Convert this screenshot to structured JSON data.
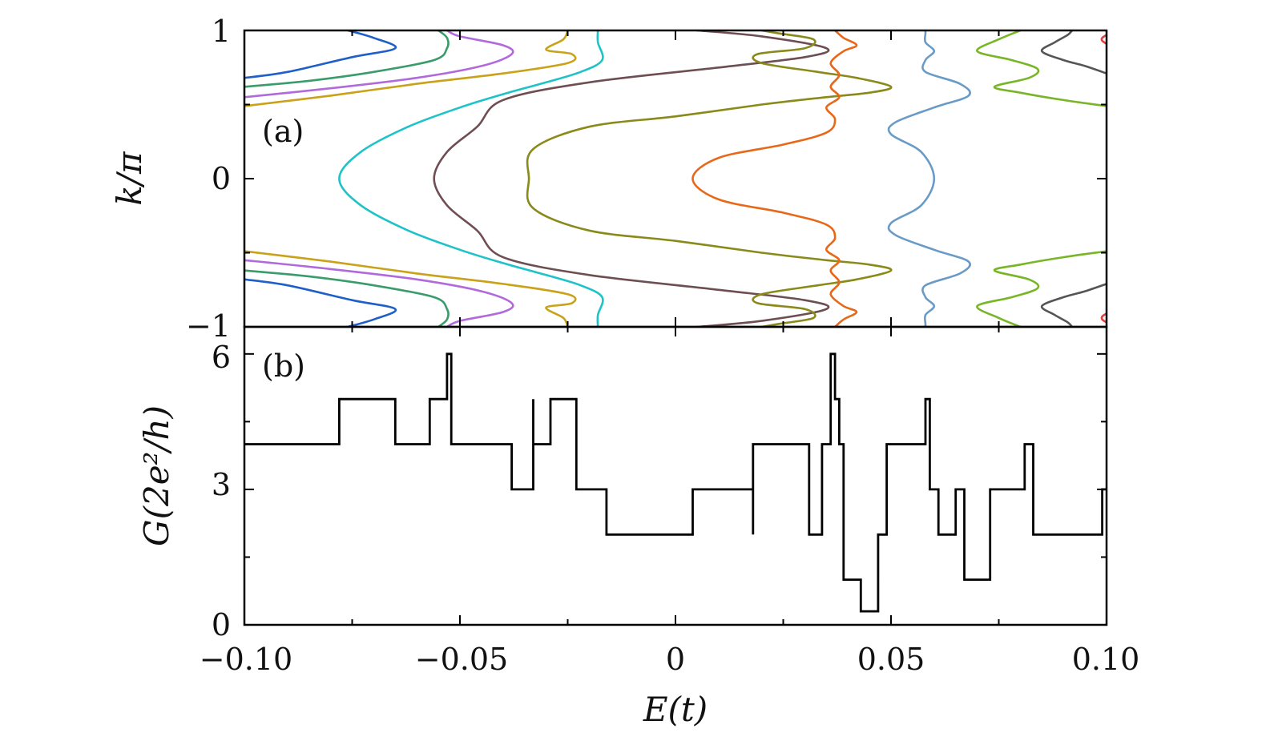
{
  "chart_data": [
    {
      "panel_label": "(a)",
      "type": "line",
      "xlabel": "E(t)",
      "ylabel": "k/π",
      "xlim": [
        -0.1,
        0.1
      ],
      "ylim": [
        -1,
        1
      ],
      "x_ticks": [
        "−0.10",
        "−0.05",
        "0",
        "0.05",
        "0.10"
      ],
      "y_ticks": [
        "−1",
        "0",
        "1"
      ],
      "x_tick_values": [
        -0.1,
        -0.05,
        0,
        0.05,
        0.1
      ],
      "y_tick_values": [
        -1,
        0,
        1
      ],
      "grid": false,
      "series": [
        {
          "color": "#1f5fc8",
          "points": [
            [
              -0.1,
              0.68
            ],
            [
              -0.09,
              0.72
            ],
            [
              -0.075,
              0.82
            ],
            [
              -0.065,
              0.88
            ],
            [
              -0.07,
              0.95
            ],
            [
              -0.076,
              1.0
            ]
          ]
        },
        {
          "color": "#3a9b6b",
          "points": [
            [
              -0.1,
              0.62
            ],
            [
              -0.085,
              0.66
            ],
            [
              -0.07,
              0.72
            ],
            [
              -0.056,
              0.8
            ],
            [
              -0.053,
              0.88
            ],
            [
              -0.053,
              0.95
            ],
            [
              -0.055,
              1.0
            ]
          ]
        },
        {
          "color": "#b06adb",
          "points": [
            [
              -0.1,
              0.55
            ],
            [
              -0.08,
              0.61
            ],
            [
              -0.06,
              0.68
            ],
            [
              -0.045,
              0.76
            ],
            [
              -0.038,
              0.84
            ],
            [
              -0.04,
              0.9
            ],
            [
              -0.05,
              0.96
            ],
            [
              -0.053,
              1.0
            ]
          ]
        },
        {
          "color": "#c9a219",
          "points": [
            [
              -0.1,
              0.49
            ],
            [
              -0.08,
              0.56
            ],
            [
              -0.06,
              0.64
            ],
            [
              -0.04,
              0.71
            ],
            [
              -0.025,
              0.78
            ],
            [
              -0.024,
              0.84
            ],
            [
              -0.03,
              0.87
            ],
            [
              -0.026,
              0.94
            ],
            [
              -0.025,
              1.0
            ]
          ]
        },
        {
          "color": "#1ec3c8",
          "points": [
            [
              -0.078,
              0.0
            ],
            [
              -0.073,
              0.18
            ],
            [
              -0.062,
              0.35
            ],
            [
              -0.05,
              0.48
            ],
            [
              -0.04,
              0.57
            ],
            [
              -0.03,
              0.65
            ],
            [
              -0.022,
              0.72
            ],
            [
              -0.017,
              0.8
            ],
            [
              -0.018,
              0.92
            ],
            [
              -0.018,
              1.0
            ]
          ]
        },
        {
          "color": "#6e4e53",
          "points": [
            [
              -0.056,
              0.0
            ],
            [
              -0.053,
              0.18
            ],
            [
              -0.046,
              0.35
            ],
            [
              -0.04,
              0.53
            ],
            [
              -0.02,
              0.65
            ],
            [
              0.01,
              0.75
            ],
            [
              0.03,
              0.82
            ],
            [
              0.035,
              0.88
            ],
            [
              0.02,
              0.96
            ],
            [
              0.005,
              1.0
            ]
          ]
        },
        {
          "color": "#8a8a1a",
          "points": [
            [
              -0.034,
              0.0
            ],
            [
              -0.033,
              0.2
            ],
            [
              -0.02,
              0.35
            ],
            [
              0.0,
              0.42
            ],
            [
              0.02,
              0.5
            ],
            [
              0.035,
              0.55
            ],
            [
              0.045,
              0.58
            ],
            [
              0.05,
              0.62
            ],
            [
              0.042,
              0.68
            ],
            [
              0.033,
              0.72
            ],
            [
              0.02,
              0.78
            ],
            [
              0.019,
              0.84
            ],
            [
              0.03,
              0.88
            ],
            [
              0.032,
              0.94
            ],
            [
              0.024,
              0.98
            ],
            [
              0.02,
              1.0
            ]
          ]
        },
        {
          "color": "#e8681a",
          "points": [
            [
              0.004,
              0.0
            ],
            [
              0.01,
              0.14
            ],
            [
              0.025,
              0.23
            ],
            [
              0.035,
              0.31
            ],
            [
              0.037,
              0.4
            ],
            [
              0.035,
              0.48
            ],
            [
              0.038,
              0.55
            ],
            [
              0.036,
              0.62
            ],
            [
              0.038,
              0.7
            ],
            [
              0.036,
              0.78
            ],
            [
              0.039,
              0.86
            ],
            [
              0.042,
              0.9
            ],
            [
              0.039,
              0.95
            ],
            [
              0.037,
              1.0
            ]
          ]
        },
        {
          "color": "#6a9bc7",
          "points": [
            [
              0.06,
              0.0
            ],
            [
              0.057,
              0.18
            ],
            [
              0.05,
              0.3
            ],
            [
              0.051,
              0.38
            ],
            [
              0.06,
              0.48
            ],
            [
              0.068,
              0.56
            ],
            [
              0.066,
              0.64
            ],
            [
              0.058,
              0.72
            ],
            [
              0.058,
              0.8
            ],
            [
              0.06,
              0.86
            ],
            [
              0.058,
              0.92
            ],
            [
              0.058,
              0.98
            ],
            [
              0.058,
              1.0
            ]
          ]
        },
        {
          "color": "#79b627",
          "points": [
            [
              0.1,
              0.49
            ],
            [
              0.09,
              0.53
            ],
            [
              0.08,
              0.58
            ],
            [
              0.074,
              0.62
            ],
            [
              0.082,
              0.68
            ],
            [
              0.084,
              0.74
            ],
            [
              0.078,
              0.8
            ],
            [
              0.07,
              0.86
            ],
            [
              0.075,
              0.94
            ],
            [
              0.08,
              1.0
            ]
          ]
        },
        {
          "color": "#555555",
          "points": [
            [
              0.1,
              0.71
            ],
            [
              0.095,
              0.76
            ],
            [
              0.09,
              0.8
            ],
            [
              0.085,
              0.86
            ],
            [
              0.088,
              0.92
            ],
            [
              0.091,
              0.97
            ],
            [
              0.092,
              1.0
            ]
          ]
        },
        {
          "color": "#e04040",
          "points": [
            [
              0.1,
              0.91
            ],
            [
              0.099,
              0.93
            ],
            [
              0.099,
              0.95
            ],
            [
              0.1,
              0.97
            ]
          ]
        }
      ]
    },
    {
      "panel_label": "(b)",
      "type": "line",
      "xlabel": "E(t)",
      "ylabel": "G(2e²/h)",
      "xlim": [
        -0.1,
        0.1
      ],
      "ylim": [
        0,
        6.6
      ],
      "x_ticks": [
        "−0.10",
        "−0.05",
        "0",
        "0.05",
        "0.10"
      ],
      "y_ticks": [
        "0",
        "3",
        "6"
      ],
      "x_tick_values": [
        -0.1,
        -0.05,
        0,
        0.05,
        0.1
      ],
      "y_tick_values": [
        0,
        3,
        6
      ],
      "grid": false,
      "step": [
        [
          -0.1,
          4
        ],
        [
          -0.078,
          4
        ],
        [
          -0.078,
          5
        ],
        [
          -0.065,
          5
        ],
        [
          -0.065,
          4
        ],
        [
          -0.057,
          4
        ],
        [
          -0.057,
          5
        ],
        [
          -0.053,
          5
        ],
        [
          -0.053,
          6
        ],
        [
          -0.052,
          6
        ],
        [
          -0.052,
          4
        ],
        [
          -0.038,
          4
        ],
        [
          -0.038,
          3
        ],
        [
          -0.033,
          3
        ],
        [
          -0.033,
          5
        ],
        [
          -0.033,
          4
        ],
        [
          -0.029,
          4
        ],
        [
          -0.029,
          5
        ],
        [
          -0.023,
          5
        ],
        [
          -0.023,
          3
        ],
        [
          -0.016,
          3
        ],
        [
          -0.016,
          2
        ],
        [
          0.004,
          2
        ],
        [
          0.004,
          3
        ],
        [
          0.018,
          3
        ],
        [
          0.018,
          2
        ],
        [
          0.018,
          4
        ],
        [
          0.031,
          4
        ],
        [
          0.031,
          2
        ],
        [
          0.034,
          2
        ],
        [
          0.034,
          4
        ],
        [
          0.036,
          4
        ],
        [
          0.036,
          6
        ],
        [
          0.037,
          6
        ],
        [
          0.037,
          5
        ],
        [
          0.038,
          5
        ],
        [
          0.038,
          4
        ],
        [
          0.039,
          4
        ],
        [
          0.039,
          1
        ],
        [
          0.043,
          1
        ],
        [
          0.043,
          0.3
        ],
        [
          0.047,
          0.3
        ],
        [
          0.047,
          2
        ],
        [
          0.049,
          2
        ],
        [
          0.049,
          4
        ],
        [
          0.058,
          4
        ],
        [
          0.058,
          5
        ],
        [
          0.059,
          5
        ],
        [
          0.059,
          3
        ],
        [
          0.061,
          3
        ],
        [
          0.061,
          2
        ],
        [
          0.065,
          2
        ],
        [
          0.065,
          3
        ],
        [
          0.067,
          3
        ],
        [
          0.067,
          1
        ],
        [
          0.073,
          1
        ],
        [
          0.073,
          3
        ],
        [
          0.081,
          3
        ],
        [
          0.081,
          4
        ],
        [
          0.083,
          4
        ],
        [
          0.083,
          2
        ],
        [
          0.099,
          2
        ],
        [
          0.099,
          3
        ],
        [
          0.1,
          3
        ]
      ]
    }
  ]
}
